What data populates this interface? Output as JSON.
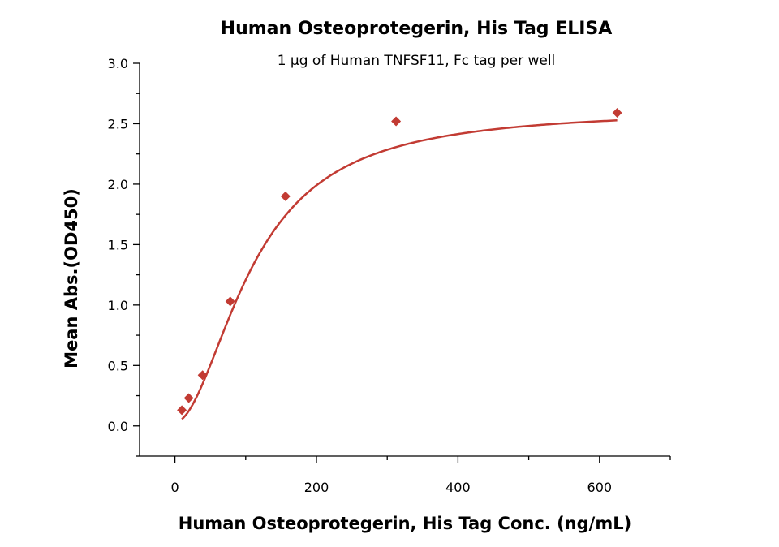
{
  "chart_data": {
    "type": "scatter",
    "title": "Human Osteoprotegerin, His Tag ELISA",
    "subtitle": "1 μg of Human TNFSF11, Fc tag per well",
    "xlabel": "Human Osteoprotegerin, His Tag Conc. (ng/mL)",
    "ylabel": "Mean Abs.(OD450)",
    "xlim": [
      -50,
      700
    ],
    "ylim": [
      -0.25,
      3.0
    ],
    "x_ticks": [
      0,
      200,
      400,
      600
    ],
    "x_tick_labels": [
      "0",
      "200",
      "400",
      "600"
    ],
    "y_ticks": [
      0.0,
      0.5,
      1.0,
      1.5,
      2.0,
      2.5,
      3.0
    ],
    "y_tick_labels": [
      "0.0",
      "0.5",
      "1.0",
      "1.5",
      "2.0",
      "2.5",
      "3.0"
    ],
    "grid": false,
    "series": [
      {
        "marker": "diamond",
        "color": "#c23b33",
        "x": [
          9.77,
          19.53,
          39.06,
          78.13,
          156.25,
          312.5,
          625
        ],
        "y": [
          0.13,
          0.23,
          0.42,
          1.03,
          1.9,
          2.52,
          2.59
        ],
        "fit_curve": true
      }
    ]
  }
}
